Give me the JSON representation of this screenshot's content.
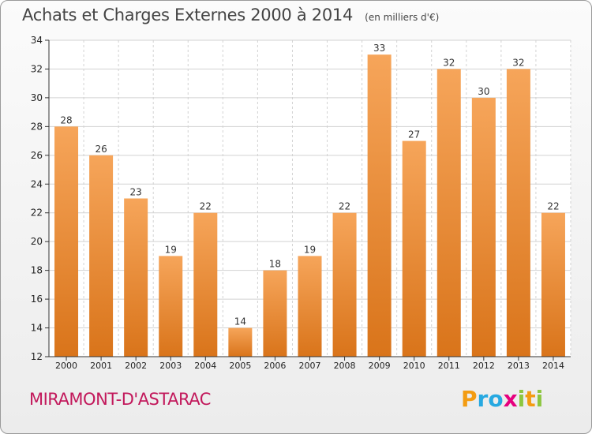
{
  "chart_data": {
    "type": "bar",
    "title": "Achats et Charges Externes 2000 à 2014",
    "subtitle": "(en milliers d'€)",
    "categories": [
      "2000",
      "2001",
      "2002",
      "2003",
      "2004",
      "2005",
      "2006",
      "2007",
      "2008",
      "2009",
      "2010",
      "2011",
      "2012",
      "2013",
      "2014"
    ],
    "values": [
      28,
      26,
      23,
      19,
      22,
      14,
      18,
      19,
      22,
      33,
      27,
      32,
      30,
      32,
      22
    ],
    "ylim": [
      12,
      34
    ],
    "yticks": [
      12,
      14,
      16,
      18,
      20,
      22,
      24,
      26,
      28,
      30,
      32,
      34
    ],
    "grid": true,
    "bar_color": "#f0882a"
  },
  "commune": "MIRAMONT-D'ASTARAC",
  "brand": {
    "letters": [
      "P",
      "r",
      "o",
      "x",
      "i",
      "t",
      "i"
    ],
    "colors": [
      "#f39c12",
      "#27a9e1",
      "#27a9e1",
      "#e6007e",
      "#8cc63f",
      "#f39c12",
      "#8cc63f"
    ]
  }
}
